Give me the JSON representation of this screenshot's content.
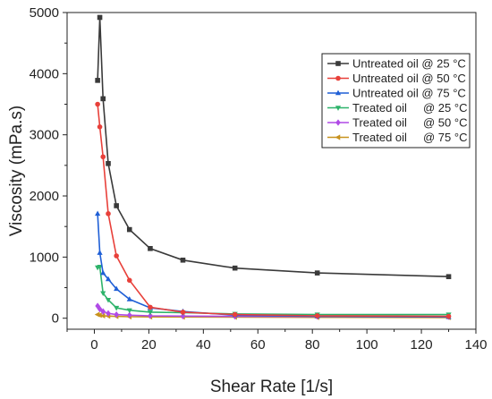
{
  "chart_data": {
    "type": "line",
    "xlabel": "Shear Rate [1/s]",
    "ylabel": "Viscosity (mPa.s)",
    "xlim": [
      -10,
      140
    ],
    "ylim": [
      -180,
      5000
    ],
    "xticks": [
      0,
      20,
      40,
      60,
      80,
      100,
      120,
      140
    ],
    "yticks": [
      0,
      1000,
      2000,
      3000,
      4000,
      5000
    ],
    "grid": false,
    "legend_position": "top-right",
    "series": [
      {
        "name": "Untreated oil @ 25 °C",
        "color": "#3a3a3a",
        "marker": "square",
        "x": [
          1.2,
          2.0,
          3.2,
          5.1,
          8.1,
          12.9,
          20.5,
          32.5,
          51.6,
          81.8,
          130
        ],
        "y": [
          3890,
          4920,
          3590,
          2530,
          1840,
          1450,
          1140,
          950,
          820,
          740,
          680
        ]
      },
      {
        "name": "Untreated oil @ 50 °C",
        "color": "#e8403a",
        "marker": "circle",
        "x": [
          1.2,
          2.0,
          3.2,
          5.1,
          8.1,
          12.9,
          20.5,
          32.5,
          51.6,
          81.8,
          130
        ],
        "y": [
          3500,
          3130,
          2640,
          1710,
          1020,
          620,
          180,
          100,
          60,
          40,
          30
        ]
      },
      {
        "name": "Untreated oil @ 75 °C",
        "color": "#1f5fd6",
        "marker": "triangle-up",
        "x": [
          1.2,
          2.0,
          3.2,
          5.1,
          8.1,
          12.9,
          20.5,
          32.5,
          51.6,
          81.8,
          130
        ],
        "y": [
          1710,
          1070,
          740,
          640,
          480,
          310,
          170,
          110,
          50,
          30,
          20
        ]
      },
      {
        "name": "Treated oil     @ 25 °C",
        "color": "#2db36a",
        "marker": "triangle-down",
        "x": [
          1.2,
          2.0,
          3.2,
          5.1,
          8.1,
          12.9,
          20.5,
          32.5,
          51.6,
          81.8,
          130
        ],
        "y": [
          830,
          840,
          410,
          300,
          170,
          130,
          100,
          90,
          70,
          60,
          60
        ]
      },
      {
        "name": "Treated oil     @ 50 °C",
        "color": "#b04ae6",
        "marker": "diamond",
        "x": [
          1.2,
          2.0,
          3.2,
          5.1,
          8.1,
          12.9,
          20.5,
          32.5,
          51.6,
          81.8,
          130
        ],
        "y": [
          200,
          150,
          110,
          80,
          60,
          50,
          40,
          35,
          30,
          28,
          25
        ]
      },
      {
        "name": "Treated oil     @ 75 °C",
        "color": "#c8921e",
        "marker": "triangle-left",
        "x": [
          1.2,
          2.0,
          3.2,
          5.1,
          8.1,
          12.9,
          20.5,
          32.5,
          51.6,
          81.8,
          130
        ],
        "y": [
          60,
          50,
          40,
          35,
          30,
          25,
          22,
          20,
          18,
          15,
          12
        ]
      }
    ]
  }
}
